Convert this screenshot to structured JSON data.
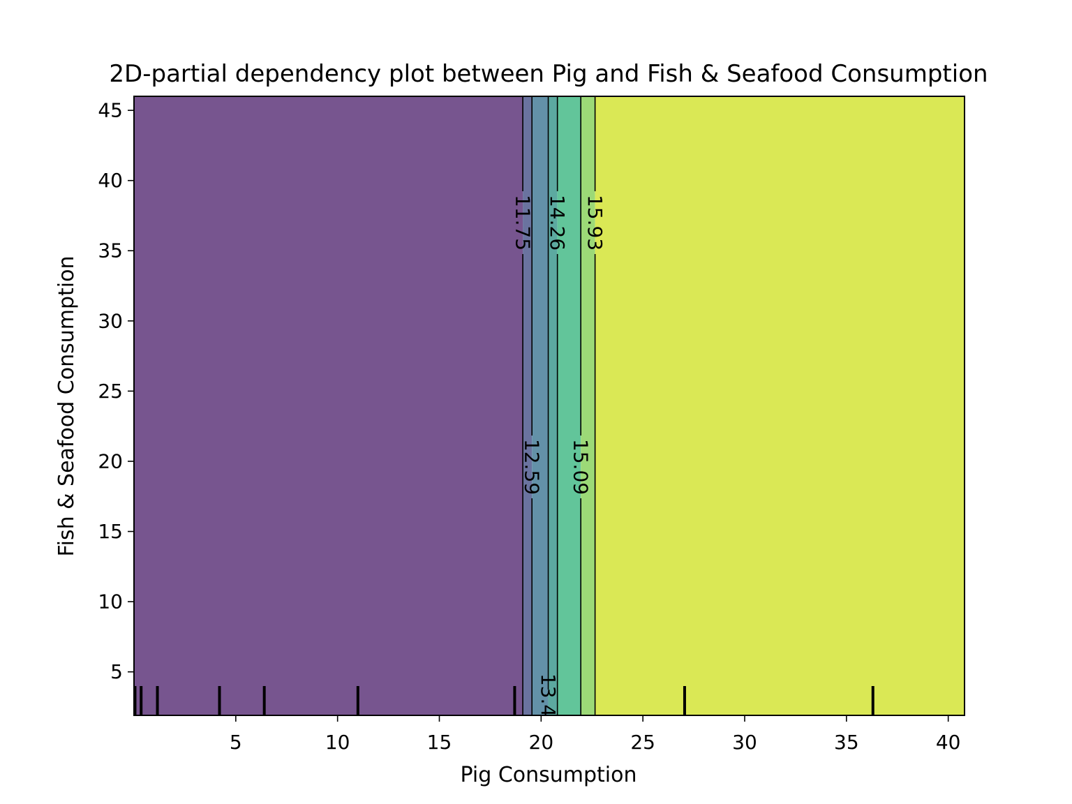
{
  "chart_data": {
    "type": "contourf",
    "title": "2D-partial dependency plot between Pig and Fish & Seafood Consumption",
    "xlabel": "Pig Consumption",
    "ylabel": "Fish & Seafood Consumption",
    "xlim": [
      0.0,
      40.8
    ],
    "ylim": [
      1.9,
      46.0
    ],
    "xticks": [
      5,
      10,
      15,
      20,
      25,
      30,
      35,
      40
    ],
    "yticks": [
      5,
      10,
      15,
      20,
      25,
      30,
      35,
      40,
      45
    ],
    "bands": [
      {
        "x_from": 0.0,
        "x_to": 19.1,
        "color": "#77558f"
      },
      {
        "x_from": 19.1,
        "x_to": 19.55,
        "color": "#6a739f"
      },
      {
        "x_from": 19.55,
        "x_to": 20.35,
        "color": "#6391a8"
      },
      {
        "x_from": 20.35,
        "x_to": 20.8,
        "color": "#5ca9a0"
      },
      {
        "x_from": 20.8,
        "x_to": 21.95,
        "color": "#62c59a"
      },
      {
        "x_from": 21.95,
        "x_to": 22.65,
        "color": "#9cd977"
      },
      {
        "x_from": 22.65,
        "x_to": 40.8,
        "color": "#dae855"
      }
    ],
    "contour_levels": [
      {
        "level": "11.75",
        "x": 19.1,
        "label_y": 37.0
      },
      {
        "level": "12.59",
        "x": 19.55,
        "label_y": 19.6
      },
      {
        "level": "13.42",
        "x": 20.35,
        "label_y": 1.9,
        "label_visible": "13.4"
      },
      {
        "level": "14.26",
        "x": 20.8,
        "label_y": 37.0
      },
      {
        "level": "15.09",
        "x": 21.95,
        "label_y": 19.6
      },
      {
        "level": "15.93",
        "x": 22.65,
        "label_y": 37.0
      }
    ],
    "rug_x": [
      0.05,
      0.35,
      1.15,
      4.2,
      6.4,
      11.0,
      18.7,
      27.05,
      36.3
    ]
  }
}
